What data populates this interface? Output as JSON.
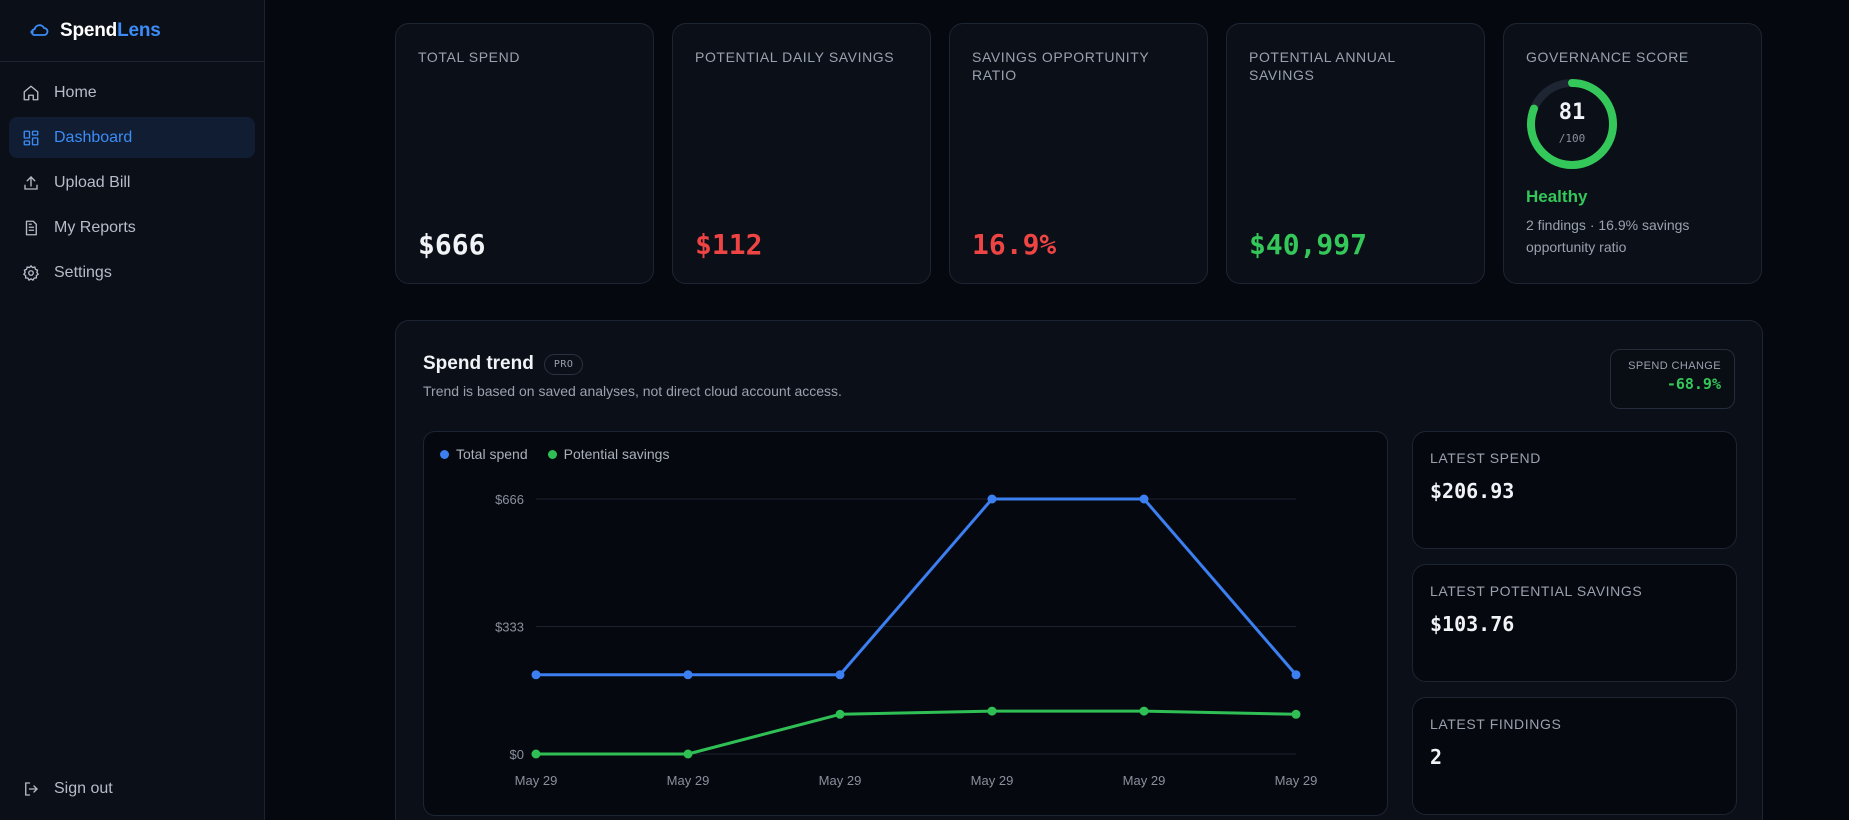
{
  "brand": {
    "name_part1": "Spend",
    "name_part2": "Lens"
  },
  "sidebar": {
    "items": [
      {
        "label": "Home",
        "icon": "home-icon"
      },
      {
        "label": "Dashboard",
        "icon": "dashboard-icon",
        "active": true
      },
      {
        "label": "Upload Bill",
        "icon": "upload-icon"
      },
      {
        "label": "My Reports",
        "icon": "document-icon"
      },
      {
        "label": "Settings",
        "icon": "gear-icon"
      }
    ],
    "signout": {
      "label": "Sign out",
      "icon": "sign-out-icon"
    }
  },
  "kpis": {
    "total_spend": {
      "label": "TOTAL SPEND",
      "value": "$666"
    },
    "daily_savings": {
      "label": "POTENTIAL DAILY SAVINGS",
      "value": "$112"
    },
    "opportunity_ratio": {
      "label": "SAVINGS OPPORTUNITY RATIO",
      "value": "16.9%"
    },
    "annual_savings": {
      "label": "POTENTIAL ANNUAL SAVINGS",
      "value": "$40,997"
    }
  },
  "governance": {
    "label": "GOVERNANCE SCORE",
    "score": "81",
    "max": "/100",
    "score_fraction": 0.81,
    "status": "Healthy",
    "description": "2 findings · 16.9% savings opportunity ratio"
  },
  "trend": {
    "title": "Spend trend",
    "badge": "PRO",
    "subtitle": "Trend is based on saved analyses, not direct cloud account access.",
    "spend_change": {
      "label": "SPEND CHANGE",
      "value": "-68.9%"
    }
  },
  "chart_data": {
    "type": "line",
    "x": [
      "May 29",
      "May 29",
      "May 29",
      "May 29",
      "May 29",
      "May 29"
    ],
    "series": [
      {
        "name": "Total spend",
        "color": "#3b7ff0",
        "values": [
          206.93,
          206.93,
          206.93,
          666,
          666,
          206.93
        ]
      },
      {
        "name": "Potential savings",
        "color": "#2fbf55",
        "values": [
          0,
          0,
          103.76,
          112,
          112,
          103.76
        ]
      }
    ],
    "y_ticks": [
      {
        "value": 0,
        "label": "$0"
      },
      {
        "value": 333,
        "label": "$333"
      },
      {
        "value": 666,
        "label": "$666"
      }
    ],
    "ylim": [
      0,
      666
    ],
    "grid": true,
    "legend": "top-left"
  },
  "latest": [
    {
      "label": "LATEST SPEND",
      "value": "$206.93"
    },
    {
      "label": "LATEST POTENTIAL SAVINGS",
      "value": "$103.76"
    },
    {
      "label": "LATEST FINDINGS",
      "value": "2"
    }
  ]
}
